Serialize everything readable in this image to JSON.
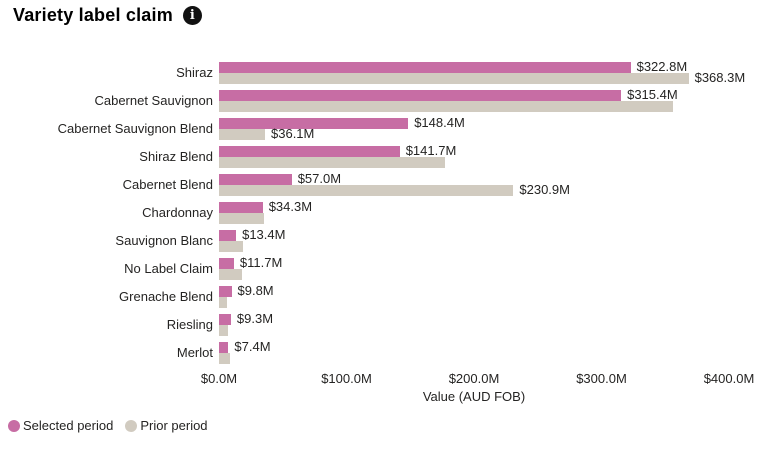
{
  "header": {
    "title": "Variety label claim"
  },
  "chart_data": {
    "type": "bar",
    "orientation": "horizontal",
    "title": "Variety label claim",
    "xlabel": "Value (AUD FOB)",
    "grid": false,
    "x_axis": {
      "label": "Value (AUD FOB)",
      "ticks": [
        "$0.0M",
        "$100.0M",
        "$200.0M",
        "$300.0M",
        "$400.0M"
      ],
      "tick_values": [
        0,
        100,
        200,
        300,
        400
      ],
      "range": [
        0,
        400
      ]
    },
    "categories": [
      "Shiraz",
      "Cabernet Sauvignon",
      "Cabernet Sauvignon Blend",
      "Shiraz Blend",
      "Cabernet Blend",
      "Chardonnay",
      "Sauvignon Blanc",
      "No Label Claim",
      "Grenache Blend",
      "Riesling",
      "Merlot"
    ],
    "series": [
      {
        "name": "Selected period",
        "color": "#c76da4",
        "values": [
          322.8,
          315.4,
          148.4,
          141.7,
          57.0,
          34.3,
          13.4,
          11.7,
          9.8,
          9.3,
          7.4
        ],
        "labels": [
          "$322.8M",
          "$315.4M",
          "$148.4M",
          "$141.7M",
          "$57.0M",
          "$34.3M",
          "$13.4M",
          "$11.7M",
          "$9.8M",
          "$9.3M",
          "$7.4M"
        ]
      },
      {
        "name": "Prior period",
        "color": "#d1cbc0",
        "values": [
          368.3,
          356,
          36.1,
          177,
          230.9,
          35,
          19,
          18,
          6.5,
          7,
          8.5
        ],
        "labels": [
          "$368.3M",
          null,
          "$36.1M",
          null,
          "$230.9M",
          null,
          null,
          null,
          null,
          null,
          null
        ]
      }
    ],
    "legend": {
      "position": "bottom-left",
      "items": [
        {
          "label": "Selected period",
          "color": "#c76da4"
        },
        {
          "label": "Prior period",
          "color": "#d1cbc0"
        }
      ]
    }
  }
}
